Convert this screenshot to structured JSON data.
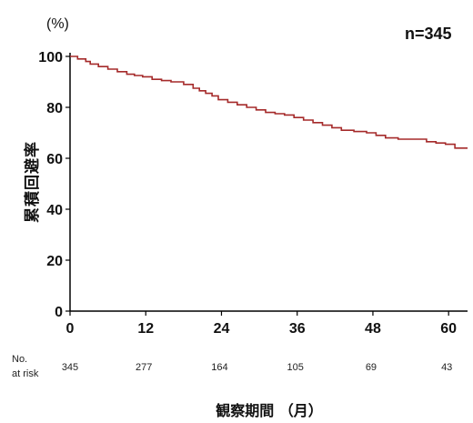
{
  "chart_data": {
    "type": "line",
    "y_unit": "(%)",
    "annotation": "n=345",
    "ylabel": "累積回避率",
    "xlabel": "観察期間 （月）",
    "xlim": [
      0,
      63
    ],
    "ylim": [
      0,
      100
    ],
    "x_ticks": [
      0,
      12,
      24,
      36,
      48,
      60
    ],
    "y_ticks": [
      0,
      20,
      40,
      60,
      80,
      100
    ],
    "grid": false,
    "line_color": "#a52a2a",
    "series": [
      {
        "x": [
          0,
          1.2,
          2.5,
          3.2,
          4.5,
          6,
          7.5,
          9,
          10.2,
          11.5,
          13,
          14.5,
          16,
          18,
          19.5,
          20.5,
          21.5,
          22.5,
          23.5,
          25,
          26.5,
          28,
          29.5,
          31,
          32.5,
          34,
          35.5,
          37,
          38.5,
          40,
          41.5,
          43,
          45,
          47,
          48.5,
          50,
          52,
          54,
          56.5,
          58,
          59.5,
          61,
          63
        ],
        "y": [
          100,
          99,
          98,
          97,
          96,
          95,
          94,
          93,
          92.5,
          92,
          91,
          90.5,
          90,
          89,
          87.5,
          86.5,
          85.5,
          84.5,
          83,
          82,
          81,
          80,
          79,
          78,
          77.5,
          77,
          76,
          75,
          74,
          73,
          72,
          71,
          70.5,
          70,
          69,
          68,
          67.5,
          67.5,
          66.5,
          66,
          65.5,
          64,
          64
        ]
      }
    ],
    "at_risk": {
      "label_line1": "No.",
      "label_line2": "at risk",
      "x": [
        0,
        12,
        24,
        36,
        48,
        60
      ],
      "counts": [
        "345",
        "277",
        "164",
        "105",
        "69",
        "43"
      ]
    }
  }
}
